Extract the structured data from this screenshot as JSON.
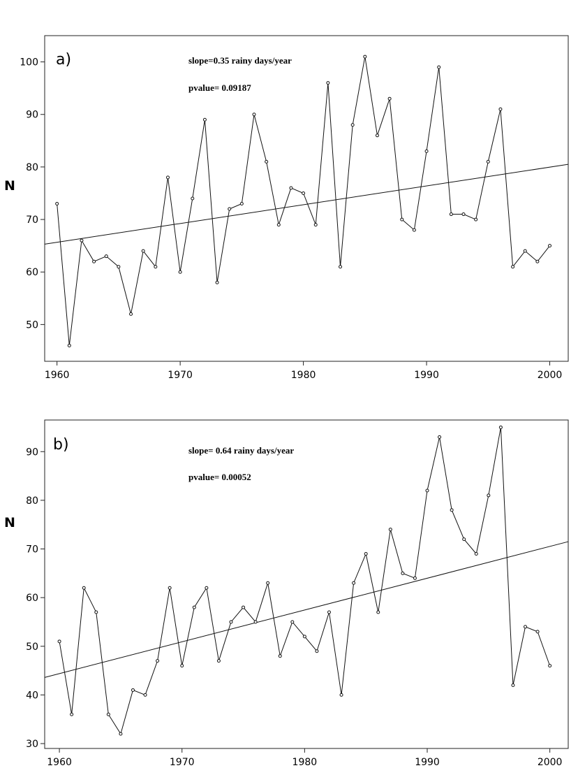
{
  "chart_data": [
    {
      "type": "line",
      "panel_label": "a)",
      "ylabel": "N",
      "annotations": [
        "slope=0.35 rainy days/year",
        "pvalue= 0.09187"
      ],
      "x": [
        1960,
        1961,
        1962,
        1963,
        1964,
        1965,
        1966,
        1967,
        1968,
        1969,
        1970,
        1971,
        1972,
        1973,
        1974,
        1975,
        1976,
        1977,
        1978,
        1979,
        1980,
        1981,
        1982,
        1983,
        1984,
        1985,
        1986,
        1987,
        1988,
        1989,
        1990,
        1991,
        1992,
        1993,
        1994,
        1995,
        1996,
        1997,
        1998,
        1999,
        2000
      ],
      "series": [
        {
          "values": [
            73,
            46,
            66,
            62,
            63,
            61,
            52,
            64,
            61,
            78,
            60,
            74,
            89,
            58,
            72,
            73,
            90,
            81,
            69,
            76,
            75,
            69,
            96,
            61,
            88,
            101,
            86,
            93,
            70,
            68,
            83,
            99,
            71,
            71,
            70,
            81,
            91,
            61,
            64,
            62,
            65
          ]
        }
      ],
      "trend": {
        "x": [
          1959,
          2001.5
        ],
        "y": [
          65.3,
          80.5
        ]
      },
      "xlim": [
        1959,
        2001.5
      ],
      "ylim": [
        43,
        105
      ],
      "xticks": [
        "1960",
        "1970",
        "1980",
        "1990",
        "2000"
      ],
      "yticks": [
        "50",
        "60",
        "70",
        "80",
        "90",
        "100"
      ],
      "grid": false
    },
    {
      "type": "line",
      "panel_label": "b)",
      "ylabel": "N",
      "annotations": [
        "slope= 0.64 rainy days/year",
        "pvalue= 0.00052"
      ],
      "x": [
        1960,
        1961,
        1962,
        1963,
        1964,
        1965,
        1966,
        1967,
        1968,
        1969,
        1970,
        1971,
        1972,
        1973,
        1974,
        1975,
        1976,
        1977,
        1978,
        1979,
        1980,
        1981,
        1982,
        1983,
        1984,
        1985,
        1986,
        1987,
        1988,
        1989,
        1990,
        1991,
        1992,
        1993,
        1994,
        1995,
        1996,
        1997,
        1998,
        1999,
        2000
      ],
      "series": [
        {
          "values": [
            51,
            36,
            62,
            57,
            36,
            32,
            41,
            40,
            47,
            62,
            46,
            58,
            62,
            47,
            55,
            58,
            55,
            63,
            48,
            55,
            52,
            49,
            57,
            40,
            63,
            69,
            57,
            74,
            65,
            64,
            82,
            93,
            78,
            72,
            69,
            81,
            95,
            42,
            54,
            53,
            46
          ]
        }
      ],
      "trend": {
        "x": [
          1958.8,
          2001.5
        ],
        "y": [
          43.6,
          71.5
        ]
      },
      "xlim": [
        1958.8,
        2001.5
      ],
      "ylim": [
        29,
        96.5
      ],
      "xticks": [
        "1960",
        "1970",
        "1980",
        "1990",
        "2000"
      ],
      "yticks": [
        "30",
        "40",
        "50",
        "60",
        "70",
        "80",
        "90"
      ],
      "grid": false
    }
  ]
}
